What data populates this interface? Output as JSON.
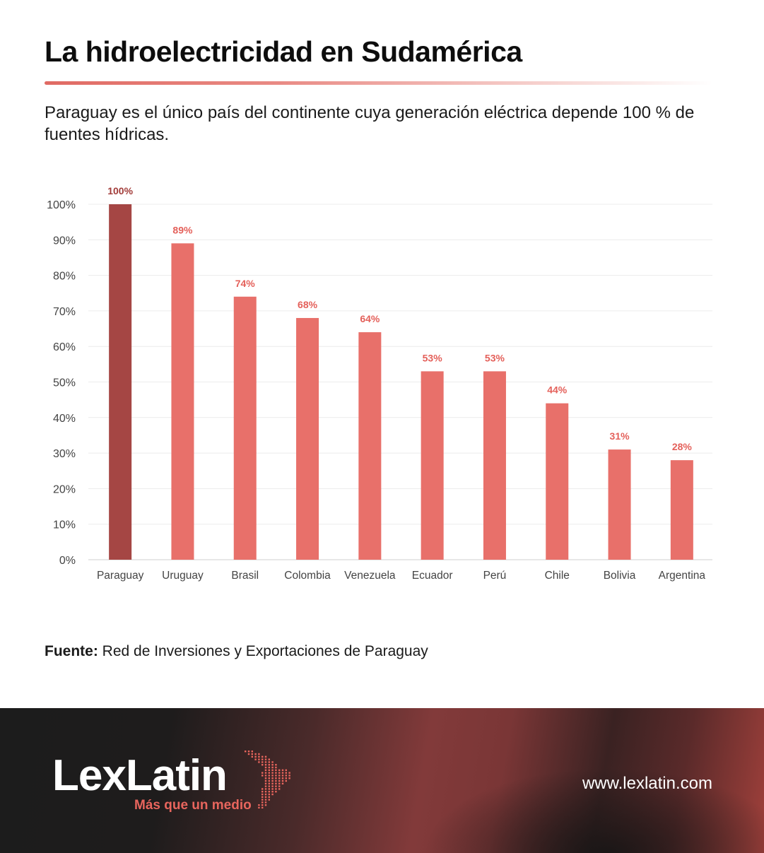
{
  "header": {
    "title": "La hidroelectricidad en Sudamérica",
    "subtitle": "Paraguay es el único país del continente cuya generación eléctrica depende 100 % de fuentes hídricas."
  },
  "chart_data": {
    "type": "bar",
    "categories": [
      "Paraguay",
      "Uruguay",
      "Brasil",
      "Colombia",
      "Venezuela",
      "Ecuador",
      "Perú",
      "Chile",
      "Bolivia",
      "Argentina"
    ],
    "values": [
      100,
      89,
      74,
      68,
      64,
      53,
      53,
      44,
      31,
      28
    ],
    "value_labels": [
      "100%",
      "89%",
      "74%",
      "68%",
      "64%",
      "53%",
      "53%",
      "44%",
      "31%",
      "28%"
    ],
    "yticks": [
      0,
      10,
      20,
      30,
      40,
      50,
      60,
      70,
      80,
      90,
      100
    ],
    "ytick_labels": [
      "0%",
      "10%",
      "20%",
      "30%",
      "40%",
      "50%",
      "60%",
      "70%",
      "80%",
      "90%",
      "100%"
    ],
    "ylim": [
      0,
      100
    ],
    "grid": true,
    "colors": {
      "highlight": "#a54644",
      "bar": "#e8706a",
      "highlight_label": "#a23c39",
      "label": "#e4605a"
    },
    "highlight_index": 0
  },
  "source": {
    "label": "Fuente:",
    "text": "Red de Inversiones y Exportaciones de Paraguay"
  },
  "footer": {
    "brand": "LexLatin",
    "tagline": "Más que un medio",
    "website": "www.lexlatin.com"
  }
}
